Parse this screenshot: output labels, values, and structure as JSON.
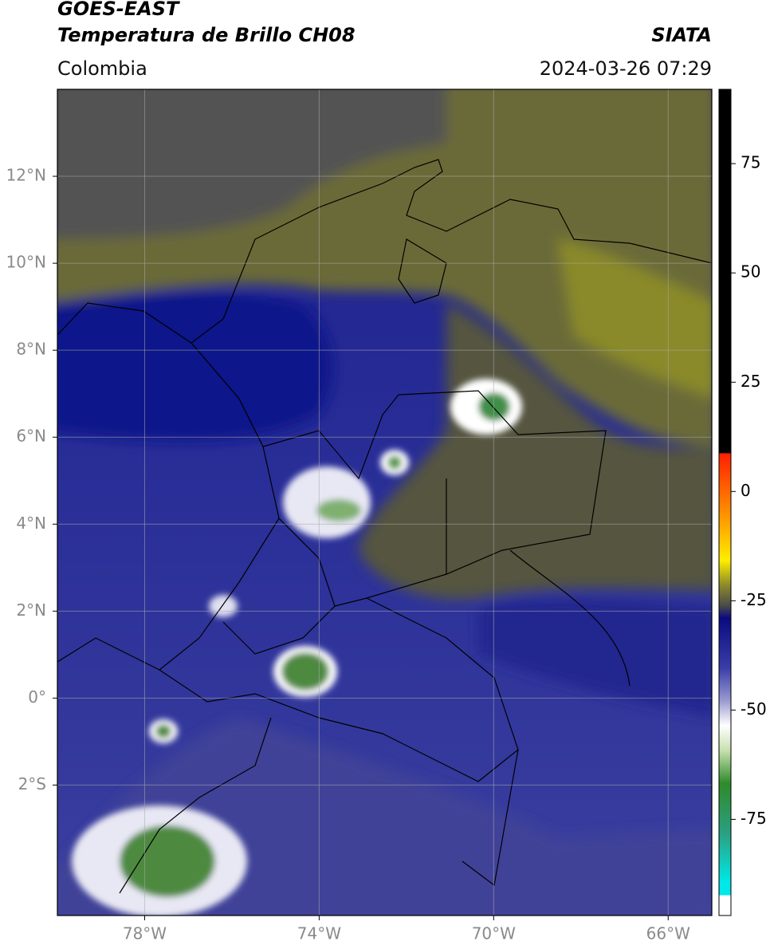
{
  "header": {
    "title": "GOES-EAST",
    "product": "Temperatura de Brillo CH08",
    "source": "SIATA",
    "region": "Colombia",
    "datetime": "2024-03-26 07:29"
  },
  "map": {
    "xlim": [
      -80,
      -65
    ],
    "ylim": [
      -5,
      14
    ],
    "xticks": [
      {
        "value": -78,
        "label": "78°W"
      },
      {
        "value": -74,
        "label": "74°W"
      },
      {
        "value": -70,
        "label": "70°W"
      },
      {
        "value": -66,
        "label": "66°W"
      }
    ],
    "yticks": [
      {
        "value": 12,
        "label": "12°N"
      },
      {
        "value": 10,
        "label": "10°N"
      },
      {
        "value": 8,
        "label": "8°N"
      },
      {
        "value": 6,
        "label": "6°N"
      },
      {
        "value": 4,
        "label": "4°N"
      },
      {
        "value": 2,
        "label": "2°N"
      },
      {
        "value": 0,
        "label": "0°"
      },
      {
        "value": -2,
        "label": "2°S"
      }
    ],
    "grid": true
  },
  "colorbar": {
    "lim": [
      -97,
      92
    ],
    "ticks": [
      75,
      50,
      25,
      0,
      -25,
      -50,
      -75
    ]
  }
}
